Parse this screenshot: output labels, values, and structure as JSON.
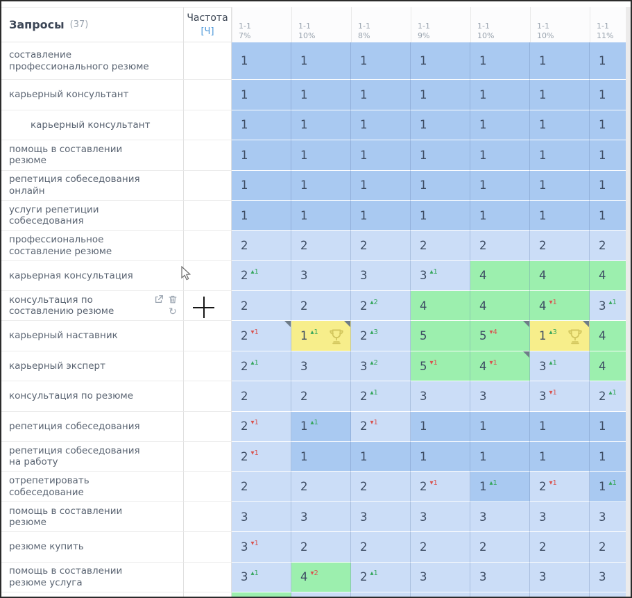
{
  "header": {
    "queries_label": "Запросы",
    "queries_count": "(37)",
    "frequency_label": "Частота",
    "frequency_link": "[Ч]",
    "columns": [
      {
        "date": "1-1",
        "pct": "7%"
      },
      {
        "date": "1-1",
        "pct": "10%"
      },
      {
        "date": "1-1",
        "pct": "8%"
      },
      {
        "date": "1-1",
        "pct": "9%"
      },
      {
        "date": "1-1",
        "pct": "10%"
      },
      {
        "date": "1-1",
        "pct": "10%"
      },
      {
        "date": "1-1",
        "pct": "11%"
      }
    ]
  },
  "legend_colors": {
    "position_1_bg": "#a9c9f1",
    "position_2_3_bg": "#cbddf7",
    "position_4_5_bg": "#9cefae",
    "best_position_bg": "#f7ee8b",
    "change_up": "#35a65c",
    "change_down": "#d9534f",
    "cell_text": "#3d4c63",
    "link_blue": "#4b97d9"
  },
  "row_icons": {
    "open": "external-link-icon",
    "delete": "trash-icon",
    "refresh": "refresh-icon",
    "refresh_glyph": "↻"
  },
  "rows": [
    {
      "query": "составление профессионального резюме",
      "tall": true,
      "indent": false,
      "icons": false,
      "cells": [
        {
          "v": "1",
          "bg": "d"
        },
        {
          "v": "1",
          "bg": "d"
        },
        {
          "v": "1",
          "bg": "d"
        },
        {
          "v": "1",
          "bg": "d"
        },
        {
          "v": "1",
          "bg": "d"
        },
        {
          "v": "1",
          "bg": "d"
        },
        {
          "v": "1",
          "bg": "d"
        }
      ]
    },
    {
      "query": "карьерный консультант",
      "tall": false,
      "indent": false,
      "icons": false,
      "cells": [
        {
          "v": "1",
          "bg": "d"
        },
        {
          "v": "1",
          "bg": "d"
        },
        {
          "v": "1",
          "bg": "d"
        },
        {
          "v": "1",
          "bg": "d"
        },
        {
          "v": "1",
          "bg": "d"
        },
        {
          "v": "1",
          "bg": "d"
        },
        {
          "v": "1",
          "bg": "d"
        }
      ]
    },
    {
      "query": "карьерный консультант",
      "tall": false,
      "indent": true,
      "icons": false,
      "cells": [
        {
          "v": "1",
          "bg": "d"
        },
        {
          "v": "1",
          "bg": "d"
        },
        {
          "v": "1",
          "bg": "d"
        },
        {
          "v": "1",
          "bg": "d"
        },
        {
          "v": "1",
          "bg": "d"
        },
        {
          "v": "1",
          "bg": "d"
        },
        {
          "v": "1",
          "bg": "d"
        }
      ]
    },
    {
      "query": "помощь в составлении резюме",
      "tall": false,
      "indent": false,
      "icons": false,
      "cells": [
        {
          "v": "1",
          "bg": "d"
        },
        {
          "v": "1",
          "bg": "d"
        },
        {
          "v": "1",
          "bg": "d"
        },
        {
          "v": "1",
          "bg": "d"
        },
        {
          "v": "1",
          "bg": "d"
        },
        {
          "v": "1",
          "bg": "d"
        },
        {
          "v": "1",
          "bg": "d"
        }
      ]
    },
    {
      "query": "репетиция собеседования онлайн",
      "tall": false,
      "indent": false,
      "icons": false,
      "cells": [
        {
          "v": "1",
          "bg": "d"
        },
        {
          "v": "1",
          "bg": "d"
        },
        {
          "v": "1",
          "bg": "d"
        },
        {
          "v": "1",
          "bg": "d"
        },
        {
          "v": "1",
          "bg": "d"
        },
        {
          "v": "1",
          "bg": "d"
        },
        {
          "v": "1",
          "bg": "d"
        }
      ]
    },
    {
      "query": "услуги репетиции собеседования",
      "tall": false,
      "indent": false,
      "icons": false,
      "cells": [
        {
          "v": "1",
          "bg": "d"
        },
        {
          "v": "1",
          "bg": "d"
        },
        {
          "v": "1",
          "bg": "d"
        },
        {
          "v": "1",
          "bg": "d"
        },
        {
          "v": "1",
          "bg": "d"
        },
        {
          "v": "1",
          "bg": "d"
        },
        {
          "v": "1",
          "bg": "d"
        }
      ]
    },
    {
      "query": "профессиональное составление резюме",
      "tall": false,
      "indent": false,
      "icons": false,
      "cells": [
        {
          "v": "2",
          "bg": "l"
        },
        {
          "v": "2",
          "bg": "l"
        },
        {
          "v": "2",
          "bg": "l"
        },
        {
          "v": "2",
          "bg": "l"
        },
        {
          "v": "2",
          "bg": "l"
        },
        {
          "v": "2",
          "bg": "l"
        },
        {
          "v": "2",
          "bg": "l"
        }
      ]
    },
    {
      "query": "карьерная консультация",
      "tall": false,
      "indent": false,
      "icons": false,
      "cells": [
        {
          "v": "2",
          "bg": "l",
          "chg": {
            "dir": "up",
            "n": "1"
          }
        },
        {
          "v": "3",
          "bg": "l"
        },
        {
          "v": "3",
          "bg": "l"
        },
        {
          "v": "3",
          "bg": "l",
          "chg": {
            "dir": "up",
            "n": "1"
          }
        },
        {
          "v": "4",
          "bg": "g"
        },
        {
          "v": "4",
          "bg": "g"
        },
        {
          "v": "4",
          "bg": "g"
        }
      ]
    },
    {
      "query": "консультация по составлению резюме",
      "tall": false,
      "indent": false,
      "icons": true,
      "cells": [
        {
          "v": "2",
          "bg": "l"
        },
        {
          "v": "2",
          "bg": "l"
        },
        {
          "v": "2",
          "bg": "l",
          "chg": {
            "dir": "up",
            "n": "2"
          }
        },
        {
          "v": "4",
          "bg": "g"
        },
        {
          "v": "4",
          "bg": "g"
        },
        {
          "v": "4",
          "bg": "g",
          "chg": {
            "dir": "down",
            "n": "1"
          }
        },
        {
          "v": "3",
          "bg": "l",
          "chg": {
            "dir": "up",
            "n": "1"
          }
        }
      ]
    },
    {
      "query": "карьерный наставник",
      "tall": false,
      "indent": false,
      "icons": false,
      "cells": [
        {
          "v": "2",
          "bg": "l",
          "chg": {
            "dir": "down",
            "n": "1"
          },
          "corner": true
        },
        {
          "v": "1",
          "bg": "y",
          "chg": {
            "dir": "up",
            "n": "1"
          },
          "corner": true,
          "trophy": true
        },
        {
          "v": "2",
          "bg": "l",
          "chg": {
            "dir": "up",
            "n": "3"
          }
        },
        {
          "v": "5",
          "bg": "g"
        },
        {
          "v": "5",
          "bg": "g",
          "chg": {
            "dir": "down",
            "n": "4"
          },
          "corner": true
        },
        {
          "v": "1",
          "bg": "y",
          "chg": {
            "dir": "up",
            "n": "3"
          },
          "corner": true,
          "trophy": true
        },
        {
          "v": "4",
          "bg": "g"
        }
      ]
    },
    {
      "query": "карьерный эксперт",
      "tall": false,
      "indent": false,
      "icons": false,
      "cells": [
        {
          "v": "2",
          "bg": "l",
          "chg": {
            "dir": "up",
            "n": "1"
          }
        },
        {
          "v": "3",
          "bg": "l"
        },
        {
          "v": "3",
          "bg": "l",
          "chg": {
            "dir": "up",
            "n": "2"
          }
        },
        {
          "v": "5",
          "bg": "g",
          "chg": {
            "dir": "down",
            "n": "1"
          }
        },
        {
          "v": "4",
          "bg": "g",
          "chg": {
            "dir": "down",
            "n": "1"
          },
          "corner": true
        },
        {
          "v": "3",
          "bg": "l",
          "chg": {
            "dir": "up",
            "n": "1"
          }
        },
        {
          "v": "4",
          "bg": "g"
        }
      ]
    },
    {
      "query": "консультация по резюме",
      "tall": false,
      "indent": false,
      "icons": false,
      "cells": [
        {
          "v": "2",
          "bg": "l"
        },
        {
          "v": "2",
          "bg": "l"
        },
        {
          "v": "2",
          "bg": "l",
          "chg": {
            "dir": "up",
            "n": "1"
          }
        },
        {
          "v": "3",
          "bg": "l"
        },
        {
          "v": "3",
          "bg": "l"
        },
        {
          "v": "3",
          "bg": "l",
          "chg": {
            "dir": "down",
            "n": "1"
          }
        },
        {
          "v": "2",
          "bg": "l",
          "chg": {
            "dir": "up",
            "n": "1"
          }
        }
      ]
    },
    {
      "query": "репетиция собеседования",
      "tall": false,
      "indent": false,
      "icons": false,
      "cells": [
        {
          "v": "2",
          "bg": "l",
          "chg": {
            "dir": "down",
            "n": "1"
          }
        },
        {
          "v": "1",
          "bg": "d",
          "chg": {
            "dir": "up",
            "n": "1"
          }
        },
        {
          "v": "2",
          "bg": "l",
          "chg": {
            "dir": "down",
            "n": "1"
          }
        },
        {
          "v": "1",
          "bg": "d"
        },
        {
          "v": "1",
          "bg": "d"
        },
        {
          "v": "1",
          "bg": "d"
        },
        {
          "v": "1",
          "bg": "d"
        }
      ]
    },
    {
      "query": "репетиция собеседования на работу",
      "tall": false,
      "indent": false,
      "icons": false,
      "cells": [
        {
          "v": "2",
          "bg": "l",
          "chg": {
            "dir": "down",
            "n": "1"
          }
        },
        {
          "v": "1",
          "bg": "d"
        },
        {
          "v": "1",
          "bg": "d"
        },
        {
          "v": "1",
          "bg": "d"
        },
        {
          "v": "1",
          "bg": "d"
        },
        {
          "v": "1",
          "bg": "d"
        },
        {
          "v": "1",
          "bg": "d"
        }
      ]
    },
    {
      "query": "отрепетировать собеседование",
      "tall": false,
      "indent": false,
      "icons": false,
      "cells": [
        {
          "v": "2",
          "bg": "l"
        },
        {
          "v": "2",
          "bg": "l"
        },
        {
          "v": "2",
          "bg": "l"
        },
        {
          "v": "2",
          "bg": "l",
          "chg": {
            "dir": "down",
            "n": "1"
          }
        },
        {
          "v": "1",
          "bg": "d",
          "chg": {
            "dir": "up",
            "n": "1"
          }
        },
        {
          "v": "2",
          "bg": "l",
          "chg": {
            "dir": "down",
            "n": "1"
          }
        },
        {
          "v": "1",
          "bg": "d",
          "chg": {
            "dir": "up",
            "n": "1"
          }
        }
      ]
    },
    {
      "query": "помощь в составлении резюме",
      "tall": false,
      "indent": false,
      "icons": false,
      "cells": [
        {
          "v": "3",
          "bg": "l"
        },
        {
          "v": "3",
          "bg": "l"
        },
        {
          "v": "3",
          "bg": "l"
        },
        {
          "v": "3",
          "bg": "l"
        },
        {
          "v": "3",
          "bg": "l"
        },
        {
          "v": "3",
          "bg": "l"
        },
        {
          "v": "3",
          "bg": "l"
        }
      ]
    },
    {
      "query": "резюме купить",
      "tall": false,
      "indent": false,
      "icons": false,
      "cells": [
        {
          "v": "3",
          "bg": "l",
          "chg": {
            "dir": "down",
            "n": "1"
          }
        },
        {
          "v": "2",
          "bg": "l"
        },
        {
          "v": "2",
          "bg": "l"
        },
        {
          "v": "2",
          "bg": "l"
        },
        {
          "v": "2",
          "bg": "l"
        },
        {
          "v": "2",
          "bg": "l"
        },
        {
          "v": "2",
          "bg": "l"
        }
      ]
    },
    {
      "query": "помощь в составлении резюме услуга",
      "tall": false,
      "indent": false,
      "icons": false,
      "cells": [
        {
          "v": "3",
          "bg": "l",
          "chg": {
            "dir": "up",
            "n": "1"
          }
        },
        {
          "v": "4",
          "bg": "g",
          "chg": {
            "dir": "down",
            "n": "2"
          }
        },
        {
          "v": "2",
          "bg": "l",
          "chg": {
            "dir": "up",
            "n": "1"
          }
        },
        {
          "v": "3",
          "bg": "l"
        },
        {
          "v": "3",
          "bg": "l"
        },
        {
          "v": "3",
          "bg": "l"
        },
        {
          "v": "3",
          "bg": "l"
        }
      ]
    }
  ],
  "partial_row_bgs": [
    "g",
    "l",
    "l",
    "l",
    "l",
    "l",
    "l"
  ]
}
